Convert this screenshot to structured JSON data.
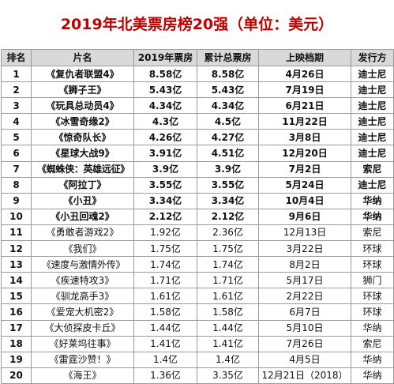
{
  "page_title": "2019年北美票房榜20强（单位：美元）",
  "headers": {
    "rank": "排名",
    "film": "片名",
    "gross_2019": "2019年票房",
    "total_gross": "累计总票房",
    "release_date": "上映档期",
    "distributor": "发行方"
  },
  "rows": [
    {
      "rank": "1",
      "film": "《复仇者联盟4》",
      "gross_2019": "8.58亿",
      "total_gross": "8.58亿",
      "release_date": "4月26日",
      "distributor": "迪士尼",
      "bold": true
    },
    {
      "rank": "2",
      "film": "《狮子王》",
      "gross_2019": "5.43亿",
      "total_gross": "5.43亿",
      "release_date": "7月19日",
      "distributor": "迪士尼",
      "bold": true
    },
    {
      "rank": "3",
      "film": "《玩具总动员4》",
      "gross_2019": "4.34亿",
      "total_gross": "4.34亿",
      "release_date": "6月21日",
      "distributor": "迪士尼",
      "bold": true
    },
    {
      "rank": "4",
      "film": "《冰雪奇缘2》",
      "gross_2019": "4.3亿",
      "total_gross": "4.5亿",
      "release_date": "11月22日",
      "distributor": "迪士尼",
      "bold": true
    },
    {
      "rank": "5",
      "film": "《惊奇队长》",
      "gross_2019": "4.26亿",
      "total_gross": "4.27亿",
      "release_date": "3月8日",
      "distributor": "迪士尼",
      "bold": true
    },
    {
      "rank": "6",
      "film": "《星球大战9》",
      "gross_2019": "3.91亿",
      "total_gross": "4.51亿",
      "release_date": "12月20日",
      "distributor": "迪士尼",
      "bold": true
    },
    {
      "rank": "7",
      "film": "《蜘蛛侠：英雄远征》",
      "gross_2019": "3.9亿",
      "total_gross": "3.9亿",
      "release_date": "7月2日",
      "distributor": "索尼",
      "bold": true
    },
    {
      "rank": "8",
      "film": "《阿拉丁》",
      "gross_2019": "3.55亿",
      "total_gross": "3.55亿",
      "release_date": "5月24日",
      "distributor": "迪士尼",
      "bold": true
    },
    {
      "rank": "9",
      "film": "《小丑》",
      "gross_2019": "3.34亿",
      "total_gross": "3.34亿",
      "release_date": "10月4日",
      "distributor": "华纳",
      "bold": true
    },
    {
      "rank": "10",
      "film": "《小丑回魂2》",
      "gross_2019": "2.12亿",
      "total_gross": "2.12亿",
      "release_date": "9月6日",
      "distributor": "华纳",
      "bold": true
    },
    {
      "rank": "11",
      "film": "《勇敢者游戏2》",
      "gross_2019": "1.92亿",
      "total_gross": "2.36亿",
      "release_date": "12月13日",
      "distributor": "索尼",
      "bold": false
    },
    {
      "rank": "12",
      "film": "《我们》",
      "gross_2019": "1.75亿",
      "total_gross": "1.75亿",
      "release_date": "3月22日",
      "distributor": "环球",
      "bold": false
    },
    {
      "rank": "13",
      "film": "《速度与激情外传》",
      "gross_2019": "1.74亿",
      "total_gross": "1.74亿",
      "release_date": "8月2日",
      "distributor": "环球",
      "bold": false
    },
    {
      "rank": "14",
      "film": "《疾速特攻3》",
      "gross_2019": "1.71亿",
      "total_gross": "1.71亿",
      "release_date": "5月17日",
      "distributor": "狮门",
      "bold": false
    },
    {
      "rank": "15",
      "film": "《驯龙高手3》",
      "gross_2019": "1.61亿",
      "total_gross": "1.61亿",
      "release_date": "2月22日",
      "distributor": "环球",
      "bold": false
    },
    {
      "rank": "16",
      "film": "《爱宠大机密2》",
      "gross_2019": "1.58亿",
      "total_gross": "1.58亿",
      "release_date": "6月7日",
      "distributor": "环球",
      "bold": false
    },
    {
      "rank": "17",
      "film": "《大侦探皮卡丘》",
      "gross_2019": "1.44亿",
      "total_gross": "1.44亿",
      "release_date": "5月10日",
      "distributor": "华纳",
      "bold": false
    },
    {
      "rank": "18",
      "film": "《好莱坞往事》",
      "gross_2019": "1.41亿",
      "total_gross": "1.41亿",
      "release_date": "7月26日",
      "distributor": "索尼",
      "bold": false
    },
    {
      "rank": "19",
      "film": "《雷霆沙赞！》",
      "gross_2019": "1.4亿",
      "total_gross": "1.4亿",
      "release_date": "4月5日",
      "distributor": "华纳",
      "bold": false
    },
    {
      "rank": "20",
      "film": "《海王》",
      "gross_2019": "1.36亿",
      "total_gross": "3.35亿",
      "release_date": "12月21日（2018）",
      "distributor": "华纳",
      "bold": false
    }
  ]
}
